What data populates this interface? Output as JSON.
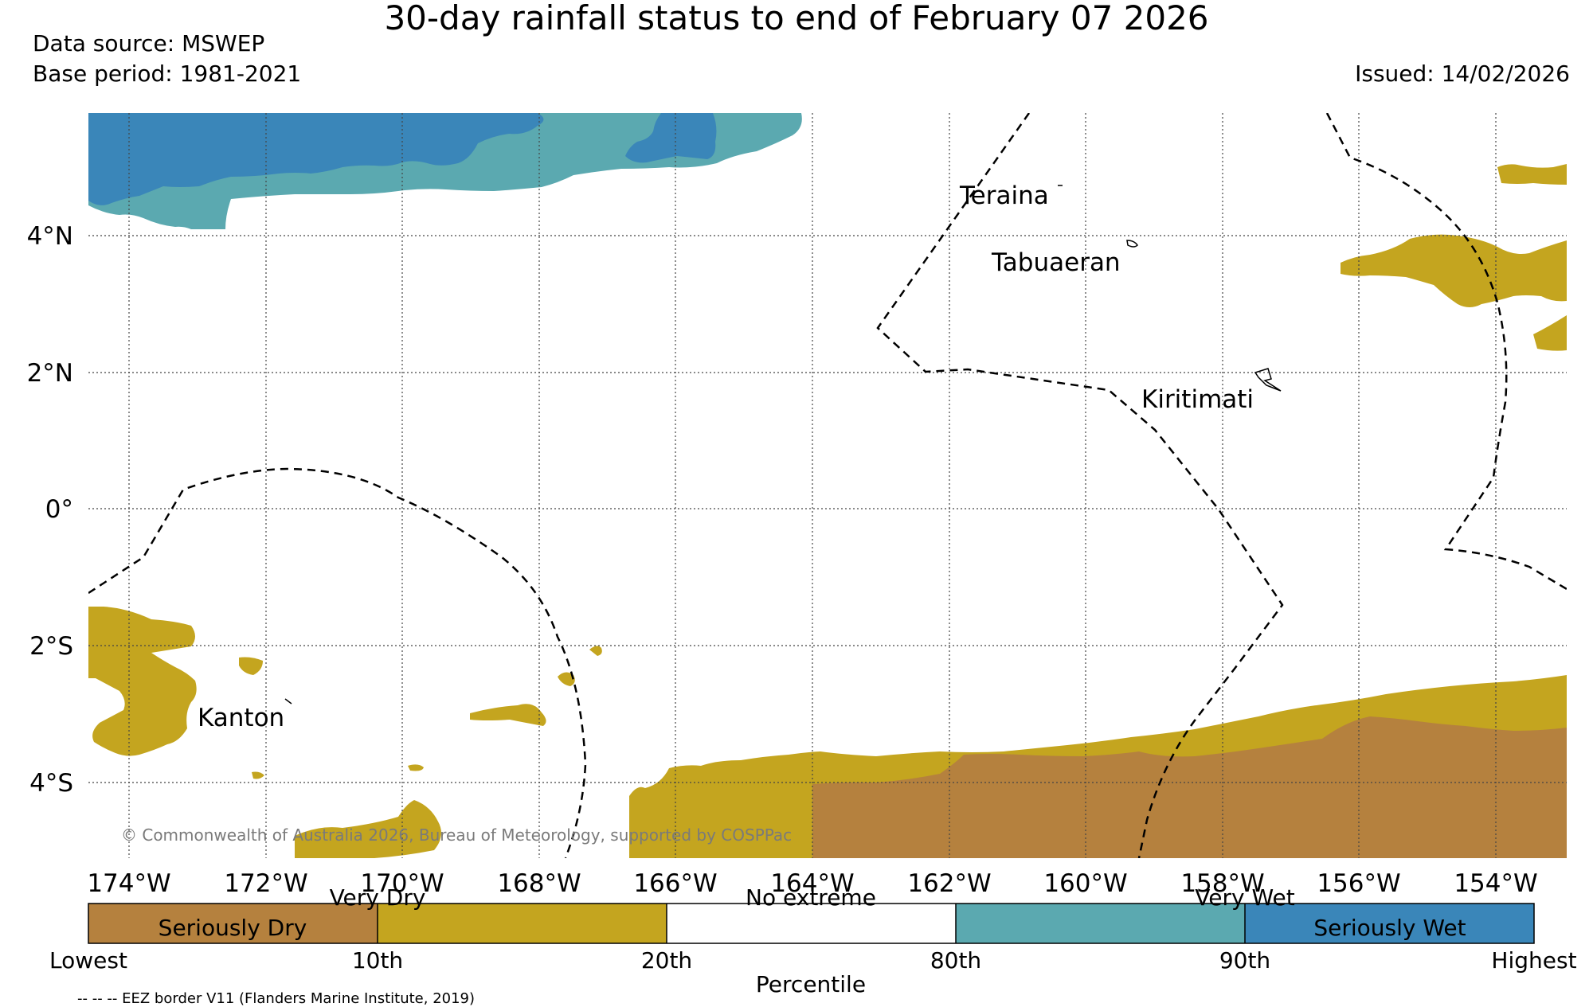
{
  "title": "30-day rainfall status to end of February 07 2026",
  "data_source": "Data source: MSWEP",
  "base_period": "Base period: 1981-2021",
  "issued": "Issued: 14/02/2026",
  "lat_labels": [
    "4°N",
    "2°N",
    "0°",
    "2°S",
    "4°S"
  ],
  "lon_labels": [
    "174°W",
    "172°W",
    "170°W",
    "168°W",
    "166°W",
    "164°W",
    "162°W",
    "160°W",
    "158°W",
    "156°W",
    "154°W"
  ],
  "places": {
    "teraina": "Teraina",
    "tabuaeran": "Tabuaeran",
    "kiritimati": "Kiritimati",
    "kanton": "Kanton"
  },
  "copyright": "© Commonwealth of Australia 2026, Bureau of Meteorology, supported by COSPPac",
  "colorbar": {
    "categories": [
      {
        "label": "Seriously Dry",
        "color": "#b5813e"
      },
      {
        "label": "Very Dry",
        "color": "#c4a51f"
      },
      {
        "label": "No extreme",
        "color": "#ffffff"
      },
      {
        "label": "Very Wet",
        "color": "#5ba9b0"
      },
      {
        "label": "Seriously Wet",
        "color": "#3a86b9"
      }
    ],
    "ticks": [
      "Lowest",
      "10th",
      "20th",
      "80th",
      "90th",
      "Highest"
    ],
    "xlabel": "Percentile"
  },
  "eez_note": "-- -- -- EEZ border V11 (Flanders Marine Institute, 2019)"
}
